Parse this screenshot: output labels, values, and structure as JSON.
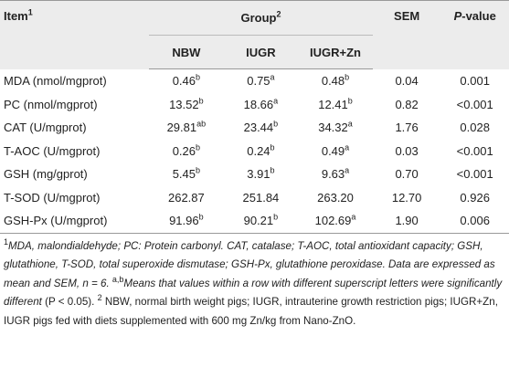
{
  "header": {
    "item": "Item",
    "item_sup": "1",
    "group": "Group",
    "group_sup": "2",
    "sem": "SEM",
    "pvalue_italic": "P",
    "pvalue_rest": "-value",
    "columns": [
      "NBW",
      "IUGR",
      "IUGR+Zn"
    ]
  },
  "table": {
    "rows": [
      {
        "item": "MDA (nmol/mgprot)",
        "cells": [
          {
            "value": "0.46",
            "sup": "b"
          },
          {
            "value": "0.75",
            "sup": "a"
          },
          {
            "value": "0.48",
            "sup": "b"
          }
        ],
        "sem": "0.04",
        "p": "0.001"
      },
      {
        "item": "PC (nmol/mgprot)",
        "cells": [
          {
            "value": "13.52",
            "sup": "b"
          },
          {
            "value": "18.66",
            "sup": "a"
          },
          {
            "value": "12.41",
            "sup": "b"
          }
        ],
        "sem": "0.82",
        "p": "<0.001"
      },
      {
        "item": "CAT (U/mgprot)",
        "cells": [
          {
            "value": "29.81",
            "sup": "ab"
          },
          {
            "value": "23.44",
            "sup": "b"
          },
          {
            "value": "34.32",
            "sup": "a"
          }
        ],
        "sem": "1.76",
        "p": "0.028"
      },
      {
        "item": "T-AOC (U/mgprot)",
        "cells": [
          {
            "value": "0.26",
            "sup": "b"
          },
          {
            "value": "0.24",
            "sup": "b"
          },
          {
            "value": "0.49",
            "sup": "a"
          }
        ],
        "sem": "0.03",
        "p": "<0.001"
      },
      {
        "item": "GSH (mg/gprot)",
        "cells": [
          {
            "value": "5.45",
            "sup": "b"
          },
          {
            "value": "3.91",
            "sup": "b"
          },
          {
            "value": "9.63",
            "sup": "a"
          }
        ],
        "sem": "0.70",
        "p": "<0.001"
      },
      {
        "item": "T-SOD (U/mgprot)",
        "cells": [
          {
            "value": "262.87"
          },
          {
            "value": "251.84"
          },
          {
            "value": "263.20"
          }
        ],
        "sem": "12.70",
        "p": "0.926"
      },
      {
        "item": "GSH-Px (U/mgprot)",
        "cells": [
          {
            "value": "91.96",
            "sup": "b"
          },
          {
            "value": "90.21",
            "sup": "b"
          },
          {
            "value": "102.69",
            "sup": "a"
          }
        ],
        "sem": "1.90",
        "p": "0.006"
      }
    ]
  },
  "footnote": {
    "parts": [
      "1",
      "MDA, malondialdehyde; PC: Protein carbonyl. CAT, catalase; T-AOC, total antioxidant capacity; GSH, glutathione, T-SOD, total superoxide dismutase; GSH-Px, glutathione peroxidase. Data are expressed as mean and SEM, n = 6. ",
      "a,b",
      "Means that values within a row with different superscript letters were significantly different",
      " (P < 0.05). ",
      "2",
      " NBW, normal birth weight pigs; IUGR, intrauterine growth restriction pigs; IUGR+Zn, IUGR pigs fed with diets supplemented with 600 mg Zn/kg from Nano-ZnO."
    ]
  }
}
